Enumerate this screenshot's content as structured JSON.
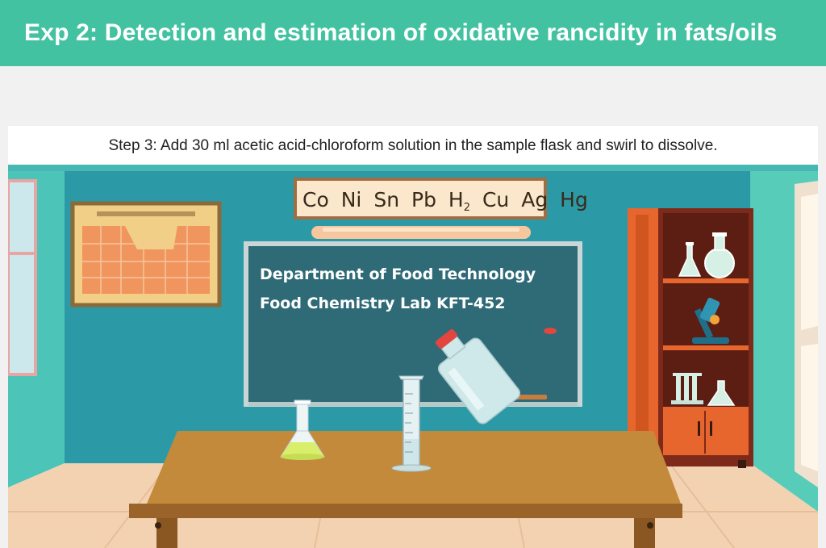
{
  "header": {
    "title": "Exp 2: Detection and estimation of oxidative rancidity in fats/oils"
  },
  "step": {
    "text": "Step 3: Add 30 ml acetic acid-chloroform solution in the sample flask and swirl to dissolve."
  },
  "elements_chart": {
    "items": [
      "Co",
      "Ni",
      "Sn",
      "Pb",
      "H",
      "Cu",
      "Ag",
      "Hg"
    ],
    "subscript": "2"
  },
  "blackboard": {
    "line1": "Department of Food Technology",
    "line2": "Food Chemistry Lab  KFT-452"
  },
  "colors": {
    "header": "#42c2a0",
    "wall": "#2b9aa6",
    "board": "#2f6a77",
    "table": "#c48a3c",
    "cabinet": "#e6662e",
    "solution": "#d9ee6a"
  },
  "icons": [
    "conical-flask-icon",
    "graduated-cylinder-icon",
    "reagent-bottle-icon",
    "microscope-icon",
    "test-tube-rack-icon",
    "round-flask-icon"
  ]
}
